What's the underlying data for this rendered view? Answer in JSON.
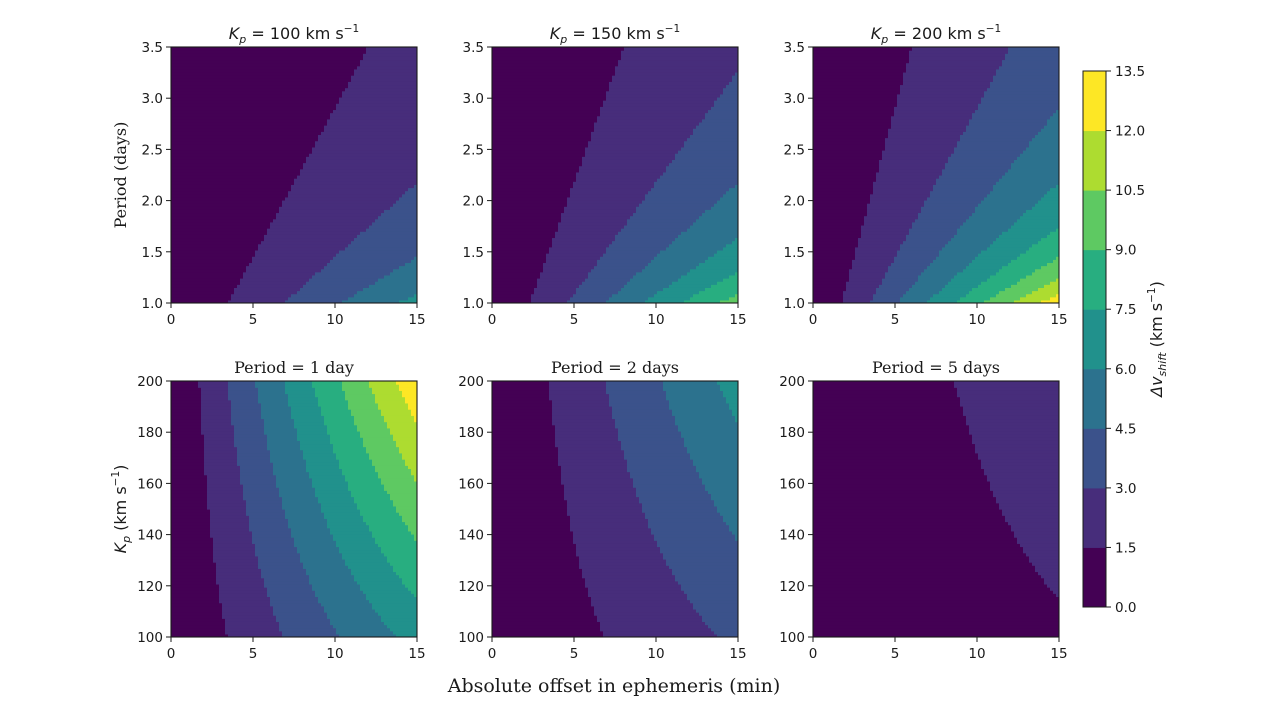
{
  "figure": {
    "xlabel": "Absolute offset in ephemeris (min)"
  },
  "colormap": [
    "#440154",
    "#472d7b",
    "#3b528b",
    "#2c728e",
    "#21918c",
    "#28ae80",
    "#5ec962",
    "#addc30",
    "#fde725"
  ],
  "colorbar": {
    "label_main": "Δv",
    "label_sub": "shift",
    "label_unit": " (km s",
    "label_exp": "−1",
    "label_close": ")",
    "levels": [
      0.0,
      1.5,
      3.0,
      4.5,
      6.0,
      7.5,
      9.0,
      10.5,
      12.0,
      13.5
    ],
    "tick_labels": [
      "0.0",
      "1.5",
      "3.0",
      "4.5",
      "6.0",
      "7.5",
      "9.0",
      "10.5",
      "12.0",
      "13.5"
    ]
  },
  "chart_data": [
    {
      "type": "heatmap",
      "id": "kp100",
      "title_parts": {
        "k": "K",
        "sub": "p",
        "rest": " = 100 km s",
        "exp": "−1"
      },
      "ylabel": "Period (days)",
      "xlim": [
        0,
        15
      ],
      "ylim": [
        1.0,
        3.5
      ],
      "x_ticks": [
        0,
        5,
        10,
        15
      ],
      "y_ticks": [
        1.0,
        1.5,
        2.0,
        2.5,
        3.0,
        3.5
      ],
      "x_tick_labels": [
        "0",
        "5",
        "10",
        "15"
      ],
      "y_tick_labels": [
        "1.0",
        "1.5",
        "2.0",
        "2.5",
        "3.0",
        "3.5"
      ],
      "fixed": {
        "Kp_km_s": 100
      },
      "grid": false
    },
    {
      "type": "heatmap",
      "id": "kp150",
      "title_parts": {
        "k": "K",
        "sub": "p",
        "rest": " = 150 km s",
        "exp": "−1"
      },
      "ylabel": "",
      "xlim": [
        0,
        15
      ],
      "ylim": [
        1.0,
        3.5
      ],
      "x_ticks": [
        0,
        5,
        10,
        15
      ],
      "y_ticks": [
        1.0,
        1.5,
        2.0,
        2.5,
        3.0,
        3.5
      ],
      "x_tick_labels": [
        "0",
        "5",
        "10",
        "15"
      ],
      "y_tick_labels": [
        "1.0",
        "1.5",
        "2.0",
        "2.5",
        "3.0",
        "3.5"
      ],
      "fixed": {
        "Kp_km_s": 150
      },
      "grid": false
    },
    {
      "type": "heatmap",
      "id": "kp200",
      "title_parts": {
        "k": "K",
        "sub": "p",
        "rest": " = 200 km s",
        "exp": "−1"
      },
      "ylabel": "",
      "xlim": [
        0,
        15
      ],
      "ylim": [
        1.0,
        3.5
      ],
      "x_ticks": [
        0,
        5,
        10,
        15
      ],
      "y_ticks": [
        1.0,
        1.5,
        2.0,
        2.5,
        3.0,
        3.5
      ],
      "x_tick_labels": [
        "0",
        "5",
        "10",
        "15"
      ],
      "y_tick_labels": [
        "1.0",
        "1.5",
        "2.0",
        "2.5",
        "3.0",
        "3.5"
      ],
      "fixed": {
        "Kp_km_s": 200
      },
      "grid": false
    },
    {
      "type": "heatmap",
      "id": "p1",
      "title": "Period = 1 day",
      "ylabel_parts": {
        "k": "K",
        "sub": "p",
        "rest": " (km s",
        "exp": "−1",
        "close": ")"
      },
      "xlim": [
        0,
        15
      ],
      "ylim": [
        100,
        200
      ],
      "x_ticks": [
        0,
        5,
        10,
        15
      ],
      "y_ticks": [
        100,
        120,
        140,
        160,
        180,
        200
      ],
      "x_tick_labels": [
        "0",
        "5",
        "10",
        "15"
      ],
      "y_tick_labels": [
        "100",
        "120",
        "140",
        "160",
        "180",
        "200"
      ],
      "fixed": {
        "period_days": 1
      },
      "grid": false
    },
    {
      "type": "heatmap",
      "id": "p2",
      "title": "Period = 2 days",
      "xlim": [
        0,
        15
      ],
      "ylim": [
        100,
        200
      ],
      "x_ticks": [
        0,
        5,
        10,
        15
      ],
      "y_ticks": [
        100,
        120,
        140,
        160,
        180,
        200
      ],
      "x_tick_labels": [
        "0",
        "5",
        "10",
        "15"
      ],
      "y_tick_labels": [
        "100",
        "120",
        "140",
        "160",
        "180",
        "200"
      ],
      "fixed": {
        "period_days": 2
      },
      "grid": false
    },
    {
      "type": "heatmap",
      "id": "p5",
      "title": "Period = 5 days",
      "xlim": [
        0,
        15
      ],
      "ylim": [
        100,
        200
      ],
      "x_ticks": [
        0,
        5,
        10,
        15
      ],
      "y_ticks": [
        100,
        120,
        140,
        160,
        180,
        200
      ],
      "x_tick_labels": [
        "0",
        "5",
        "10",
        "15"
      ],
      "y_tick_labels": [
        "100",
        "120",
        "140",
        "160",
        "180",
        "200"
      ],
      "fixed": {
        "period_days": 5
      },
      "grid": false
    }
  ]
}
